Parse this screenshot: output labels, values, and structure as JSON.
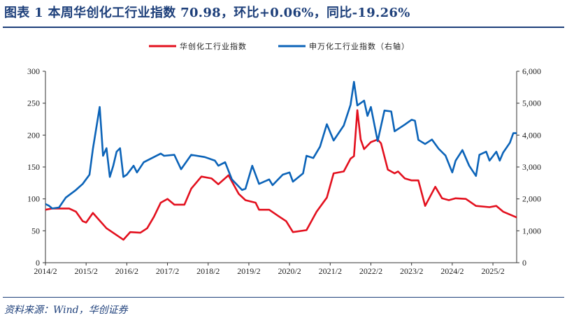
{
  "title": "图表 1   本周华创化工行业指数 70.98，环比+0.06%，同比-19.26%",
  "source": "资料来源：Wind，华创证券",
  "chart_data": {
    "type": "line",
    "title": "",
    "xlabel": "",
    "ylabel": "",
    "x_ticks": [
      "2014/2",
      "2015/2",
      "2016/2",
      "2017/2",
      "2018/2",
      "2019/2",
      "2020/2",
      "2021/2",
      "2022/2",
      "2023/2",
      "2024/2",
      "2025/2"
    ],
    "x_range": [
      "2014-02",
      "2025-09"
    ],
    "y_left": {
      "range": [
        0,
        300
      ],
      "ticks": [
        "0",
        "50",
        "100",
        "150",
        "200",
        "250",
        "300"
      ]
    },
    "y_right": {
      "range": [
        0,
        6000
      ],
      "ticks": [
        "0",
        "1,000",
        "2,000",
        "3,000",
        "4,000",
        "5,000",
        "6,000"
      ]
    },
    "grid": false,
    "legend_position": "top",
    "series": [
      {
        "name": "华创化工行业指数",
        "axis": "left",
        "color": "#e3101e",
        "points": [
          [
            "2014-02",
            83
          ],
          [
            "2014-04",
            85
          ],
          [
            "2014-09",
            85
          ],
          [
            "2014-11",
            80
          ],
          [
            "2015-01",
            65
          ],
          [
            "2015-02",
            63
          ],
          [
            "2015-04",
            78
          ],
          [
            "2015-05",
            72
          ],
          [
            "2015-08",
            54
          ],
          [
            "2016-01",
            36
          ],
          [
            "2016-03",
            48
          ],
          [
            "2016-06",
            47
          ],
          [
            "2016-08",
            54
          ],
          [
            "2016-10",
            72
          ],
          [
            "2016-12",
            94
          ],
          [
            "2017-02",
            100
          ],
          [
            "2017-04",
            91
          ],
          [
            "2017-07",
            91
          ],
          [
            "2017-09",
            116
          ],
          [
            "2017-12",
            135
          ],
          [
            "2018-03",
            132
          ],
          [
            "2018-05",
            123
          ],
          [
            "2018-08",
            137
          ],
          [
            "2018-11",
            108
          ],
          [
            "2019-01",
            98
          ],
          [
            "2019-04",
            94
          ],
          [
            "2019-05",
            83
          ],
          [
            "2019-08",
            83
          ],
          [
            "2019-11",
            72
          ],
          [
            "2020-01",
            65
          ],
          [
            "2020-03",
            48
          ],
          [
            "2020-07",
            51
          ],
          [
            "2020-10",
            80
          ],
          [
            "2021-01",
            102
          ],
          [
            "2021-03",
            140
          ],
          [
            "2021-06",
            143
          ],
          [
            "2021-08",
            163
          ],
          [
            "2021-09",
            167
          ],
          [
            "2021-10",
            239
          ],
          [
            "2021-11",
            193
          ],
          [
            "2021-12",
            178
          ],
          [
            "2022-02",
            189
          ],
          [
            "2022-04",
            193
          ],
          [
            "2022-05",
            187
          ],
          [
            "2022-07",
            146
          ],
          [
            "2022-09",
            140
          ],
          [
            "2022-10",
            143
          ],
          [
            "2022-12",
            132
          ],
          [
            "2023-02",
            129
          ],
          [
            "2023-04",
            129
          ],
          [
            "2023-06",
            89
          ],
          [
            "2023-09",
            119
          ],
          [
            "2023-11",
            101
          ],
          [
            "2024-01",
            98
          ],
          [
            "2024-03",
            101
          ],
          [
            "2024-06",
            100
          ],
          [
            "2024-09",
            89
          ],
          [
            "2025-01",
            87
          ],
          [
            "2025-03",
            89
          ],
          [
            "2025-05",
            80
          ],
          [
            "2025-09",
            71
          ]
        ]
      },
      {
        "name": "申万化工行业指数（右轴）",
        "axis": "right",
        "color": "#0b63b8",
        "points": [
          [
            "2014-02",
            1840
          ],
          [
            "2014-03",
            1790
          ],
          [
            "2014-04",
            1700
          ],
          [
            "2014-06",
            1730
          ],
          [
            "2014-08",
            2040
          ],
          [
            "2014-11",
            2280
          ],
          [
            "2015-01",
            2470
          ],
          [
            "2015-03",
            2760
          ],
          [
            "2015-04",
            3570
          ],
          [
            "2015-06",
            4880
          ],
          [
            "2015-07",
            3350
          ],
          [
            "2015-08",
            3590
          ],
          [
            "2015-09",
            2690
          ],
          [
            "2015-10",
            3040
          ],
          [
            "2015-11",
            3480
          ],
          [
            "2015-12",
            3590
          ],
          [
            "2016-01",
            2690
          ],
          [
            "2016-02",
            2760
          ],
          [
            "2016-04",
            3040
          ],
          [
            "2016-05",
            2830
          ],
          [
            "2016-07",
            3150
          ],
          [
            "2016-12",
            3420
          ],
          [
            "2017-01",
            3350
          ],
          [
            "2017-04",
            3380
          ],
          [
            "2017-06",
            2930
          ],
          [
            "2017-09",
            3380
          ],
          [
            "2018-01",
            3310
          ],
          [
            "2018-04",
            3200
          ],
          [
            "2018-05",
            3040
          ],
          [
            "2018-07",
            3150
          ],
          [
            "2018-09",
            2610
          ],
          [
            "2018-12",
            2280
          ],
          [
            "2019-01",
            2320
          ],
          [
            "2019-03",
            3040
          ],
          [
            "2019-05",
            2470
          ],
          [
            "2019-08",
            2610
          ],
          [
            "2019-09",
            2430
          ],
          [
            "2019-12",
            2760
          ],
          [
            "2020-02",
            2830
          ],
          [
            "2020-03",
            2540
          ],
          [
            "2020-06",
            2800
          ],
          [
            "2020-07",
            3350
          ],
          [
            "2020-09",
            3280
          ],
          [
            "2020-11",
            3640
          ],
          [
            "2021-01",
            4340
          ],
          [
            "2021-03",
            3830
          ],
          [
            "2021-06",
            4300
          ],
          [
            "2021-08",
            4950
          ],
          [
            "2021-09",
            5670
          ],
          [
            "2021-10",
            4930
          ],
          [
            "2021-12",
            5080
          ],
          [
            "2022-01",
            4600
          ],
          [
            "2022-02",
            4880
          ],
          [
            "2022-04",
            3810
          ],
          [
            "2022-06",
            4770
          ],
          [
            "2022-08",
            4740
          ],
          [
            "2022-09",
            4120
          ],
          [
            "2022-12",
            4330
          ],
          [
            "2023-02",
            4480
          ],
          [
            "2023-03",
            4450
          ],
          [
            "2023-04",
            3850
          ],
          [
            "2023-06",
            3720
          ],
          [
            "2023-08",
            3860
          ],
          [
            "2023-10",
            3570
          ],
          [
            "2023-12",
            3360
          ],
          [
            "2024-02",
            2830
          ],
          [
            "2024-03",
            3200
          ],
          [
            "2024-05",
            3530
          ],
          [
            "2024-07",
            3040
          ],
          [
            "2024-09",
            2720
          ],
          [
            "2024-10",
            3380
          ],
          [
            "2024-12",
            3480
          ],
          [
            "2025-01",
            3200
          ],
          [
            "2025-03",
            3480
          ],
          [
            "2025-04",
            3200
          ],
          [
            "2025-05",
            3450
          ],
          [
            "2025-07",
            3760
          ],
          [
            "2025-08",
            4060
          ],
          [
            "2025-09",
            4060
          ]
        ]
      }
    ]
  }
}
